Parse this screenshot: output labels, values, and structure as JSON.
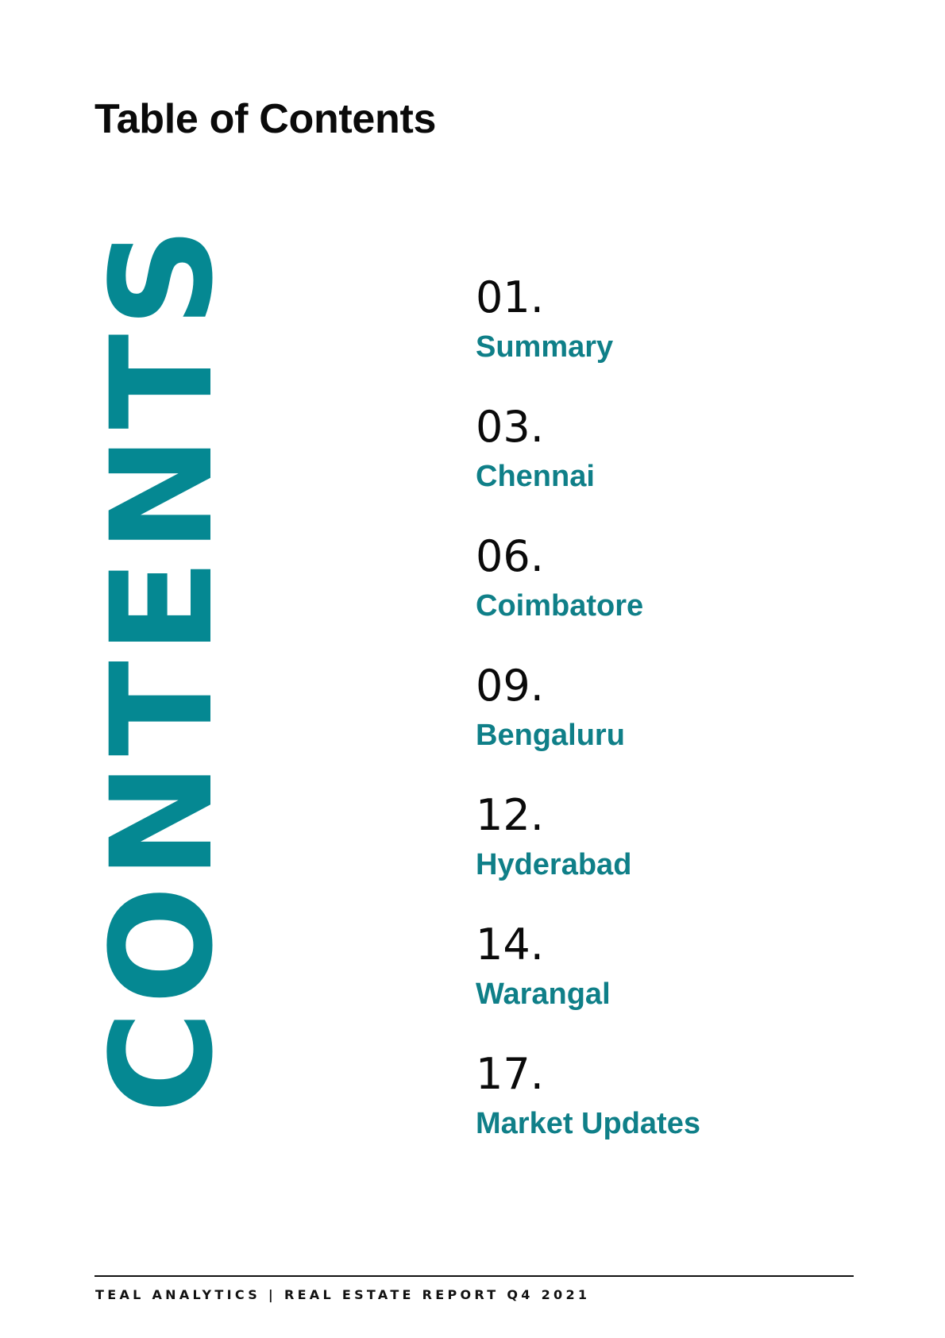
{
  "page_title": "Table of Contents",
  "vertical_heading": "CONTENTS",
  "accent_color": "#058892",
  "toc": [
    {
      "number": "01.",
      "title": "Summary"
    },
    {
      "number": "03.",
      "title": "Chennai"
    },
    {
      "number": "06.",
      "title": "Coimbatore"
    },
    {
      "number": "09.",
      "title": "Bengaluru"
    },
    {
      "number": "12.",
      "title": "Hyderabad"
    },
    {
      "number": "14.",
      "title": "Warangal"
    },
    {
      "number": "17.",
      "title": "Market Updates"
    }
  ],
  "footer": "TEAL ANALYTICS | REAL ESTATE REPORT Q4 2021"
}
